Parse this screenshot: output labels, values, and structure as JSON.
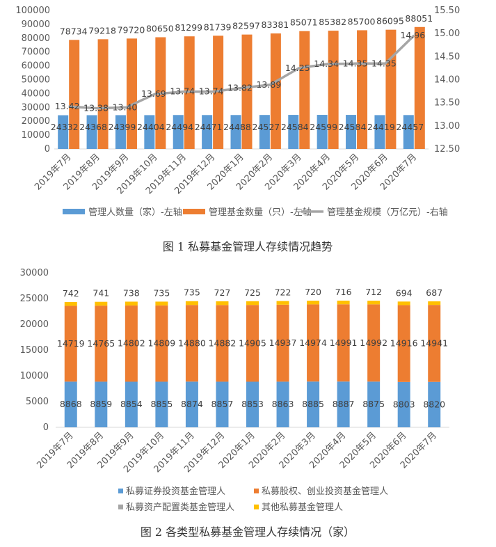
{
  "chart_data": [
    {
      "type": "bar",
      "caption": "图 1  私募基金管理人存续情况趋势",
      "categories": [
        "2019年7月",
        "2019年8月",
        "2019年9月",
        "2019年10月",
        "2019年11月",
        "2019年12月",
        "2020年1月",
        "2020年2月",
        "2020年3月",
        "2020年4月",
        "2020年5月",
        "2020年6月",
        "2020年7月"
      ],
      "series": [
        {
          "name": "管理人数量（家）-左轴",
          "kind": "bar",
          "axis": "left",
          "color": "#5b9bd5",
          "values": [
            24332,
            24368,
            24399,
            24404,
            24494,
            24471,
            24488,
            24527,
            24584,
            24599,
            24584,
            24419,
            24457
          ]
        },
        {
          "name": "管理基金数量（只）-左轴",
          "kind": "bar",
          "axis": "left",
          "color": "#ed7d31",
          "values": [
            78734,
            79218,
            79720,
            80650,
            81299,
            81739,
            82597,
            83381,
            85071,
            85382,
            85700,
            86095,
            88051
          ]
        },
        {
          "name": "管理基金规模（万亿元）-右轴",
          "kind": "line",
          "axis": "right",
          "color": "#a5a5a5",
          "values": [
            13.42,
            13.38,
            13.4,
            13.69,
            13.74,
            13.74,
            13.82,
            13.89,
            14.25,
            14.34,
            14.35,
            14.35,
            14.96
          ],
          "labels": [
            "13.42",
            "13.38",
            "13.40",
            "13.69",
            "13.74",
            "13.74",
            "13.82",
            "13.89",
            "14.25",
            "14.34",
            "14.35",
            "14.35",
            "14.96"
          ]
        }
      ],
      "left_ticks": [
        "0",
        "10000",
        "20000",
        "30000",
        "40000",
        "50000",
        "60000",
        "70000",
        "80000",
        "90000",
        "100000"
      ],
      "ylim_left": [
        0,
        100000
      ],
      "right_ticks": [
        "12.50",
        "13.00",
        "13.50",
        "14.00",
        "14.50",
        "15.00",
        "15.50"
      ],
      "ylim_right": [
        12.5,
        15.5
      ],
      "legend_position": "bottom",
      "grid": false
    },
    {
      "type": "bar",
      "stacked": true,
      "caption": "图 2  各类型私募基金管理人存续情况（家）",
      "categories": [
        "2019年7月",
        "2019年8月",
        "2019年9月",
        "2019年10月",
        "2019年11月",
        "2019年12月",
        "2020年1月",
        "2020年2月",
        "2020年3月",
        "2020年4月",
        "2020年5月",
        "2020年6月",
        "2020年7月"
      ],
      "series": [
        {
          "name": "私募证券投资基金管理人",
          "color": "#5b9bd5",
          "values": [
            8868,
            8859,
            8854,
            8855,
            8874,
            8857,
            8853,
            8863,
            8885,
            8887,
            8875,
            8803,
            8820
          ]
        },
        {
          "name": "私募股权、创业投资基金管理人",
          "color": "#ed7d31",
          "values": [
            14719,
            14765,
            14802,
            14809,
            14880,
            14882,
            14905,
            14937,
            14974,
            14991,
            14992,
            14916,
            14941
          ]
        },
        {
          "name": "私募资产配置类基金管理人",
          "color": "#a5a5a5",
          "values": [
            3,
            3,
            5,
            5,
            5,
            5,
            5,
            5,
            5,
            5,
            5,
            6,
            9
          ]
        },
        {
          "name": "其他私募基金管理人",
          "color": "#ffc000",
          "values": [
            742,
            741,
            738,
            735,
            735,
            727,
            725,
            722,
            720,
            716,
            712,
            694,
            687
          ]
        }
      ],
      "y_ticks": [
        "0",
        "5000",
        "10000",
        "15000",
        "20000",
        "25000",
        "30000"
      ],
      "ylim": [
        0,
        30000
      ],
      "legend_position": "bottom",
      "grid": false
    }
  ]
}
